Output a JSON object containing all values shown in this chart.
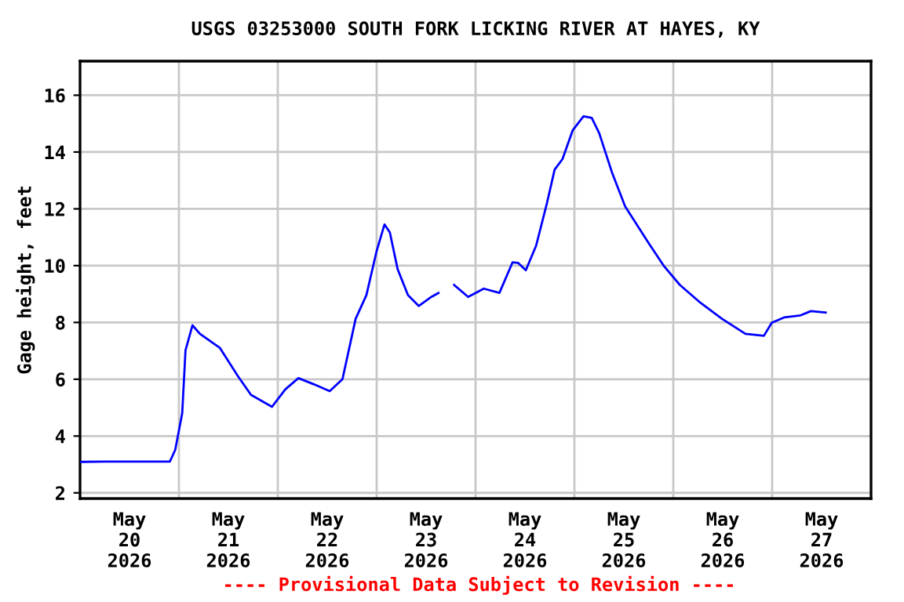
{
  "chart_data": {
    "type": "line",
    "title": "USGS 03253000 SOUTH FORK LICKING RIVER AT HAYES, KY",
    "ylabel": "Gage height, feet",
    "annotations": [
      "---- Provisional Data Subject to Revision ----"
    ],
    "x": [
      "2026-05-20T00:18",
      "2026-05-20T06:00",
      "2026-05-20T21:48",
      "2026-05-20T23:06",
      "2026-05-21T00:48",
      "2026-05-21T01:36",
      "2026-05-21T03:18",
      "2026-05-21T05:06",
      "2026-05-21T08:00",
      "2026-05-21T09:54",
      "2026-05-21T14:24",
      "2026-05-21T17:30",
      "2026-05-21T22:36",
      "2026-05-22T01:48",
      "2026-05-22T05:00",
      "2026-05-22T08:48",
      "2026-05-22T12:36",
      "2026-05-22T15:42",
      "2026-05-22T18:54",
      "2026-05-22T21:30",
      "2026-05-23T00:00",
      "2026-05-23T01:54",
      "2026-05-23T03:12",
      "2026-05-23T05:06",
      "2026-05-23T07:36",
      "2026-05-23T10:12",
      "2026-05-23T13:18",
      "2026-05-23T15:00",
      "2026-05-23T16:00",
      "2026-05-23T18:48",
      "2026-05-23T22:12",
      "2026-05-24T02:00",
      "2026-05-24T05:48",
      "2026-05-24T09:00",
      "2026-05-24T10:18",
      "2026-05-24T12:12",
      "2026-05-24T14:42",
      "2026-05-24T17:18",
      "2026-05-24T19:12",
      "2026-05-24T21:06",
      "2026-05-24T23:36",
      "2026-05-25T02:12",
      "2026-05-25T04:12",
      "2026-05-25T06:00",
      "2026-05-25T09:06",
      "2026-05-25T12:18",
      "2026-05-25T18:00",
      "2026-05-25T21:48",
      "2026-05-26T01:36",
      "2026-05-26T06:42",
      "2026-05-26T11:48",
      "2026-05-26T17:30",
      "2026-05-26T22:00",
      "2026-05-26T23:54",
      "2026-05-27T03:00",
      "2026-05-27T06:54",
      "2026-05-27T09:24",
      "2026-05-27T13:00"
    ],
    "series": [
      {
        "color": "#0000ff",
        "values": [
          3.09,
          3.1,
          3.1,
          3.51,
          4.8,
          7.02,
          7.9,
          7.6,
          7.3,
          7.11,
          6.09,
          5.45,
          5.03,
          5.64,
          6.04,
          5.82,
          5.58,
          6.0,
          8.13,
          8.96,
          10.52,
          11.45,
          11.17,
          9.87,
          8.96,
          8.58,
          8.9,
          9.04,
          null,
          9.32,
          8.9,
          9.19,
          9.04,
          10.12,
          10.1,
          9.84,
          10.7,
          12.18,
          13.38,
          13.75,
          14.77,
          15.26,
          15.2,
          14.67,
          13.29,
          12.09,
          10.8,
          9.97,
          9.32,
          8.68,
          8.13,
          7.6,
          7.53,
          7.99,
          8.18,
          8.25,
          8.4,
          8.35
        ]
      }
    ],
    "xlim": [
      "2026-05-20",
      "2026-05-28"
    ],
    "xticks": [
      {
        "value": "2026-05-20T12:00",
        "label": "May\n20\n2026"
      },
      {
        "value": "2026-05-21T12:00",
        "label": "May\n21\n2026"
      },
      {
        "value": "2026-05-22T12:00",
        "label": "May\n22\n2026"
      },
      {
        "value": "2026-05-23T12:00",
        "label": "May\n23\n2026"
      },
      {
        "value": "2026-05-24T12:00",
        "label": "May\n24\n2026"
      },
      {
        "value": "2026-05-25T12:00",
        "label": "May\n25\n2026"
      },
      {
        "value": "2026-05-26T12:00",
        "label": "May\n26\n2026"
      },
      {
        "value": "2026-05-27T12:00",
        "label": "May\n27\n2026"
      },
      {
        "value": "2026-05-21",
        "label": null
      },
      {
        "value": "2026-05-22",
        "label": null
      },
      {
        "value": "2026-05-23",
        "label": null
      },
      {
        "value": "2026-05-24",
        "label": null
      },
      {
        "value": "2026-05-25",
        "label": null
      },
      {
        "value": "2026-05-26",
        "label": null
      },
      {
        "value": "2026-05-27",
        "label": null
      }
    ],
    "ylim": [
      1.8,
      17.2
    ],
    "yticks": [
      2,
      4,
      6,
      8,
      10,
      12,
      14,
      16
    ],
    "grid": true,
    "line_style": "solid",
    "marker": "none"
  }
}
